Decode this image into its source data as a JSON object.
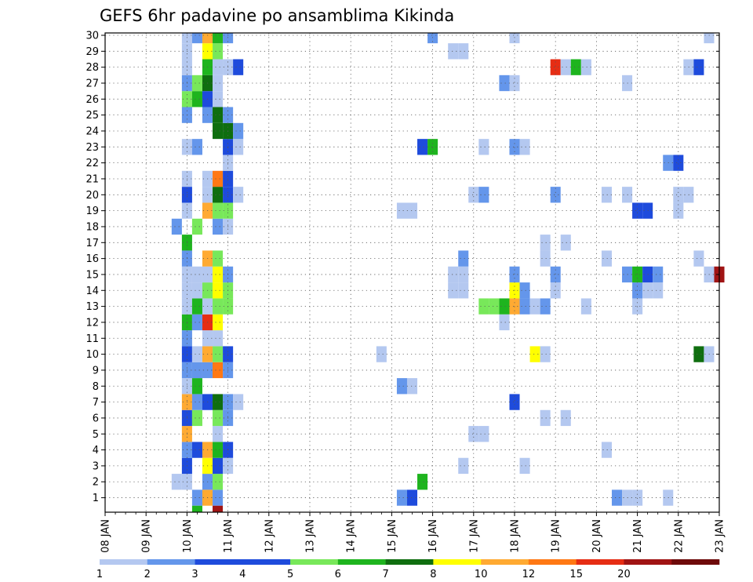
{
  "chart_data": {
    "type": "heatmap",
    "title": "GEFS 6hr padavine po ansamblima Kikinda",
    "x_ticks": [
      "08 JAN",
      "09 JAN",
      "10 JAN",
      "11 JAN",
      "12 JAN",
      "13 JAN",
      "14 JAN",
      "15 JAN",
      "16 JAN",
      "17 JAN",
      "18 JAN",
      "19 JAN",
      "20 JAN",
      "21 JAN",
      "22 JAN",
      "23 JAN"
    ],
    "y_range": [
      1,
      30
    ],
    "grid": true,
    "legend": "bottom colorbar",
    "colorbar": {
      "labels": [
        "1",
        "2",
        "3",
        "4",
        "5",
        "6",
        "7",
        "8",
        "10",
        "12",
        "15",
        "20"
      ],
      "colors": [
        "#b4c8f0",
        "#6496eb",
        "#1e4bdc",
        "#1e4bdc",
        "#78e85a",
        "#1eb41e",
        "#0f6e0f",
        "#ffff00",
        "#ffaa32",
        "#ff7814",
        "#e62d14",
        "#a01414",
        "#6e0a0a"
      ]
    },
    "cells": [
      [
        10.25,
        1,
        1
      ],
      [
        10.5,
        1,
        8
      ],
      [
        10.75,
        1,
        1
      ],
      [
        15.25,
        1,
        1
      ],
      [
        15.5,
        1,
        3
      ],
      [
        20.5,
        1,
        1
      ],
      [
        20.75,
        1,
        0
      ],
      [
        21.0,
        1,
        0
      ],
      [
        21.75,
        1,
        0
      ],
      [
        9.75,
        2,
        0
      ],
      [
        10.0,
        2,
        0
      ],
      [
        10.5,
        2,
        1
      ],
      [
        10.75,
        2,
        4
      ],
      [
        15.75,
        2,
        5
      ],
      [
        10.0,
        3,
        2
      ],
      [
        10.5,
        3,
        7
      ],
      [
        10.75,
        3,
        3
      ],
      [
        11.0,
        3,
        0
      ],
      [
        16.75,
        3,
        0
      ],
      [
        18.25,
        3,
        0
      ],
      [
        10.0,
        4,
        1
      ],
      [
        10.25,
        4,
        3
      ],
      [
        10.5,
        4,
        8
      ],
      [
        10.75,
        4,
        5
      ],
      [
        11.0,
        4,
        3
      ],
      [
        20.25,
        4,
        0
      ],
      [
        10.0,
        5,
        8
      ],
      [
        10.75,
        5,
        0
      ],
      [
        17.0,
        5,
        0
      ],
      [
        17.25,
        5,
        0
      ],
      [
        10.0,
        6,
        3
      ],
      [
        10.25,
        6,
        4
      ],
      [
        10.75,
        6,
        4
      ],
      [
        11.0,
        6,
        1
      ],
      [
        18.75,
        6,
        0
      ],
      [
        19.25,
        6,
        0
      ],
      [
        10.0,
        7,
        8
      ],
      [
        10.25,
        7,
        1
      ],
      [
        10.5,
        7,
        2
      ],
      [
        10.75,
        7,
        6
      ],
      [
        11.0,
        7,
        1
      ],
      [
        11.25,
        7,
        0
      ],
      [
        18.0,
        7,
        2
      ],
      [
        10.0,
        8,
        0
      ],
      [
        10.25,
        8,
        5
      ],
      [
        15.25,
        8,
        1
      ],
      [
        15.5,
        8,
        0
      ],
      [
        10.0,
        9,
        1
      ],
      [
        10.25,
        9,
        1
      ],
      [
        10.5,
        9,
        1
      ],
      [
        10.75,
        9,
        9
      ],
      [
        11.0,
        9,
        1
      ],
      [
        10.0,
        10,
        2
      ],
      [
        10.25,
        10,
        0
      ],
      [
        10.5,
        10,
        8
      ],
      [
        10.75,
        10,
        4
      ],
      [
        11.0,
        10,
        3
      ],
      [
        14.75,
        10,
        0
      ],
      [
        18.5,
        10,
        7
      ],
      [
        18.75,
        10,
        0
      ],
      [
        22.5,
        10,
        6
      ],
      [
        22.75,
        10,
        0
      ],
      [
        10.0,
        11,
        1
      ],
      [
        10.5,
        11,
        0
      ],
      [
        10.75,
        11,
        0
      ],
      [
        10.0,
        12,
        5
      ],
      [
        10.25,
        12,
        1
      ],
      [
        10.5,
        12,
        10
      ],
      [
        10.75,
        12,
        7
      ],
      [
        17.75,
        12,
        0
      ],
      [
        10.0,
        13,
        0
      ],
      [
        10.25,
        13,
        5
      ],
      [
        10.5,
        13,
        0
      ],
      [
        10.75,
        13,
        4
      ],
      [
        11.0,
        13,
        4
      ],
      [
        17.25,
        13,
        4
      ],
      [
        17.5,
        13,
        4
      ],
      [
        17.75,
        13,
        5
      ],
      [
        18.0,
        13,
        8
      ],
      [
        18.25,
        13,
        1
      ],
      [
        18.5,
        13,
        0
      ],
      [
        18.75,
        13,
        1
      ],
      [
        19.75,
        13,
        0
      ],
      [
        21.0,
        13,
        0
      ],
      [
        10.0,
        14,
        0
      ],
      [
        10.25,
        14,
        0
      ],
      [
        10.5,
        14,
        4
      ],
      [
        10.75,
        14,
        7
      ],
      [
        11.0,
        14,
        4
      ],
      [
        16.5,
        14,
        0
      ],
      [
        16.75,
        14,
        0
      ],
      [
        18.0,
        14,
        7
      ],
      [
        18.25,
        14,
        1
      ],
      [
        19.0,
        14,
        0
      ],
      [
        21.0,
        14,
        1
      ],
      [
        21.25,
        14,
        0
      ],
      [
        21.5,
        14,
        0
      ],
      [
        10.0,
        15,
        0
      ],
      [
        10.25,
        15,
        0
      ],
      [
        10.5,
        15,
        0
      ],
      [
        10.75,
        15,
        7
      ],
      [
        11.0,
        15,
        1
      ],
      [
        16.5,
        15,
        0
      ],
      [
        16.75,
        15,
        0
      ],
      [
        18.0,
        15,
        1
      ],
      [
        19.0,
        15,
        1
      ],
      [
        20.75,
        15,
        1
      ],
      [
        21.0,
        15,
        5
      ],
      [
        21.25,
        15,
        2
      ],
      [
        21.5,
        15,
        1
      ],
      [
        22.75,
        15,
        0
      ],
      [
        23.0,
        15,
        11
      ],
      [
        10.0,
        16,
        1
      ],
      [
        10.5,
        16,
        8
      ],
      [
        10.75,
        16,
        4
      ],
      [
        16.75,
        16,
        1
      ],
      [
        18.75,
        16,
        0
      ],
      [
        20.25,
        16,
        0
      ],
      [
        22.5,
        16,
        0
      ],
      [
        10.0,
        17,
        5
      ],
      [
        18.75,
        17,
        0
      ],
      [
        19.25,
        17,
        0
      ],
      [
        9.75,
        18,
        1
      ],
      [
        10.25,
        18,
        4
      ],
      [
        10.75,
        18,
        1
      ],
      [
        11.0,
        18,
        0
      ],
      [
        10.0,
        19,
        0
      ],
      [
        10.5,
        19,
        8
      ],
      [
        10.75,
        19,
        4
      ],
      [
        11.0,
        19,
        4
      ],
      [
        15.25,
        19,
        0
      ],
      [
        15.5,
        19,
        0
      ],
      [
        21.0,
        19,
        2
      ],
      [
        21.25,
        19,
        3
      ],
      [
        22.0,
        19,
        0
      ],
      [
        10.0,
        20,
        2
      ],
      [
        10.5,
        20,
        0
      ],
      [
        10.75,
        20,
        6
      ],
      [
        11.0,
        20,
        2
      ],
      [
        11.25,
        20,
        0
      ],
      [
        17.0,
        20,
        0
      ],
      [
        17.25,
        20,
        1
      ],
      [
        19.0,
        20,
        1
      ],
      [
        20.25,
        20,
        0
      ],
      [
        20.75,
        20,
        0
      ],
      [
        22.0,
        20,
        0
      ],
      [
        22.25,
        20,
        0
      ],
      [
        10.0,
        21,
        0
      ],
      [
        10.5,
        21,
        0
      ],
      [
        10.75,
        21,
        9
      ],
      [
        11.0,
        21,
        3
      ],
      [
        11.0,
        22,
        0
      ],
      [
        21.75,
        22,
        1
      ],
      [
        22.0,
        22,
        3
      ],
      [
        10.0,
        23,
        0
      ],
      [
        10.25,
        23,
        1
      ],
      [
        11.0,
        23,
        3
      ],
      [
        11.25,
        23,
        0
      ],
      [
        15.75,
        23,
        2
      ],
      [
        16.0,
        23,
        5
      ],
      [
        17.25,
        23,
        0
      ],
      [
        18.0,
        23,
        1
      ],
      [
        18.25,
        23,
        0
      ],
      [
        10.75,
        24,
        6
      ],
      [
        11.0,
        24,
        6
      ],
      [
        11.25,
        24,
        1
      ],
      [
        10.0,
        25,
        1
      ],
      [
        10.5,
        25,
        1
      ],
      [
        10.75,
        25,
        6
      ],
      [
        11.0,
        25,
        1
      ],
      [
        10.0,
        26,
        4
      ],
      [
        10.25,
        26,
        5
      ],
      [
        10.5,
        26,
        3
      ],
      [
        10.75,
        26,
        0
      ],
      [
        10.0,
        27,
        1
      ],
      [
        10.25,
        27,
        4
      ],
      [
        10.5,
        27,
        6
      ],
      [
        10.75,
        27,
        0
      ],
      [
        17.75,
        27,
        1
      ],
      [
        18.0,
        27,
        0
      ],
      [
        20.75,
        27,
        0
      ],
      [
        10.0,
        28,
        0
      ],
      [
        10.5,
        28,
        5
      ],
      [
        10.75,
        28,
        0
      ],
      [
        11.0,
        28,
        0
      ],
      [
        11.25,
        28,
        3
      ],
      [
        19.0,
        28,
        10
      ],
      [
        19.25,
        28,
        0
      ],
      [
        19.5,
        28,
        5
      ],
      [
        19.75,
        28,
        0
      ],
      [
        22.25,
        28,
        0
      ],
      [
        22.5,
        28,
        3
      ],
      [
        10.0,
        29,
        0
      ],
      [
        10.5,
        29,
        7
      ],
      [
        10.75,
        29,
        4
      ],
      [
        16.5,
        29,
        0
      ],
      [
        16.75,
        29,
        0
      ],
      [
        10.0,
        30,
        0
      ],
      [
        10.25,
        30,
        1
      ],
      [
        10.5,
        30,
        8
      ],
      [
        10.75,
        30,
        5
      ],
      [
        11.0,
        30,
        1
      ],
      [
        16.0,
        30,
        1
      ],
      [
        18.0,
        30,
        0
      ],
      [
        22.75,
        30,
        0
      ],
      [
        10.25,
        0,
        5
      ],
      [
        10.75,
        0,
        11
      ]
    ]
  }
}
